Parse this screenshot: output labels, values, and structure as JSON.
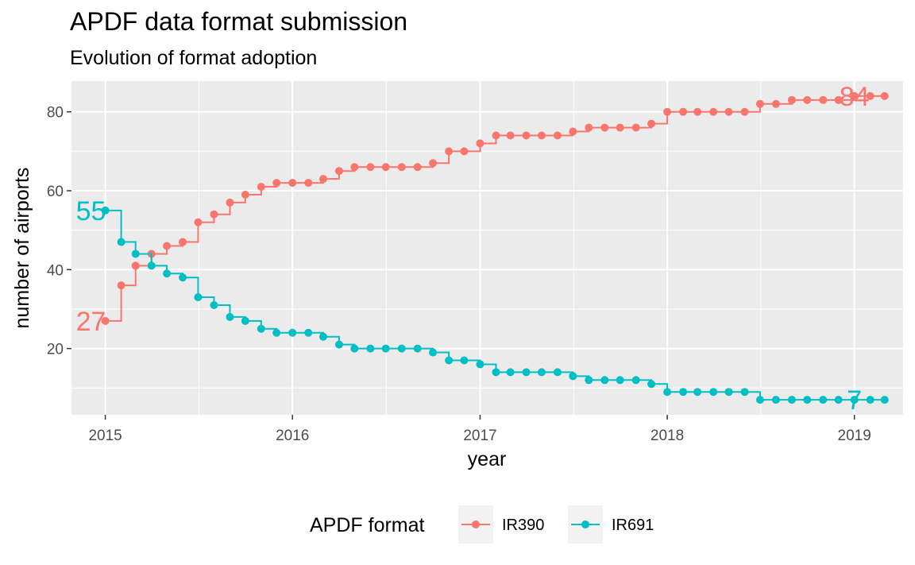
{
  "chart_data": {
    "type": "line",
    "step": true,
    "title": "APDF data format submission",
    "subtitle": "Evolution of format adoption",
    "xlabel": "year",
    "ylabel": "number of airports",
    "xlim": [
      "2014-10-27",
      "2019-04-06"
    ],
    "ylim": [
      3.2,
      87.8
    ],
    "x_ticks": [
      "2015-01-01",
      "2016-01-01",
      "2017-01-01",
      "2018-01-01",
      "2019-01-01"
    ],
    "x_tick_labels": [
      "2015",
      "2016",
      "2017",
      "2018",
      "2019"
    ],
    "y_ticks": [
      20,
      40,
      60,
      80
    ],
    "y_tick_labels": [
      "20",
      "40",
      "60",
      "80"
    ],
    "grid": true,
    "legend": {
      "title": "APDF format",
      "placement": "bottom"
    },
    "x": [
      "2015-01-01",
      "2015-02-01",
      "2015-03-01",
      "2015-04-01",
      "2015-05-01",
      "2015-06-01",
      "2015-07-01",
      "2015-08-01",
      "2015-09-01",
      "2015-10-01",
      "2015-11-01",
      "2015-12-01",
      "2016-01-01",
      "2016-02-01",
      "2016-03-01",
      "2016-04-01",
      "2016-05-01",
      "2016-06-01",
      "2016-07-01",
      "2016-08-01",
      "2016-09-01",
      "2016-10-01",
      "2016-11-01",
      "2016-12-01",
      "2017-01-01",
      "2017-02-01",
      "2017-03-01",
      "2017-04-01",
      "2017-05-01",
      "2017-06-01",
      "2017-07-01",
      "2017-08-01",
      "2017-09-01",
      "2017-10-01",
      "2017-11-01",
      "2017-12-01",
      "2018-01-01",
      "2018-02-01",
      "2018-03-01",
      "2018-04-01",
      "2018-05-01",
      "2018-06-01",
      "2018-07-01",
      "2018-08-01",
      "2018-09-01",
      "2018-10-01",
      "2018-11-01",
      "2018-12-01",
      "2019-01-01",
      "2019-02-01",
      "2019-03-01"
    ],
    "series": [
      {
        "name": "IR390",
        "color": "#F8766D",
        "end_label": "84",
        "start_label": "27",
        "values": [
          27,
          36,
          41,
          44,
          46,
          47,
          52,
          54,
          57,
          59,
          61,
          62,
          62,
          62,
          63,
          65,
          66,
          66,
          66,
          66,
          66,
          67,
          70,
          70,
          72,
          74,
          74,
          74,
          74,
          74,
          75,
          76,
          76,
          76,
          76,
          77,
          80,
          80,
          80,
          80,
          80,
          80,
          82,
          82,
          83,
          83,
          83,
          83,
          84,
          84,
          84
        ]
      },
      {
        "name": "IR691",
        "color": "#00BFC4",
        "end_label": "7",
        "start_label": "55",
        "values": [
          55,
          47,
          44,
          41,
          39,
          38,
          33,
          31,
          28,
          27,
          25,
          24,
          24,
          24,
          23,
          21,
          20,
          20,
          20,
          20,
          20,
          19,
          17,
          17,
          16,
          14,
          14,
          14,
          14,
          14,
          13,
          12,
          12,
          12,
          12,
          11,
          9,
          9,
          9,
          9,
          9,
          9,
          7,
          7,
          7,
          7,
          7,
          7,
          7,
          7,
          7
        ]
      }
    ]
  }
}
